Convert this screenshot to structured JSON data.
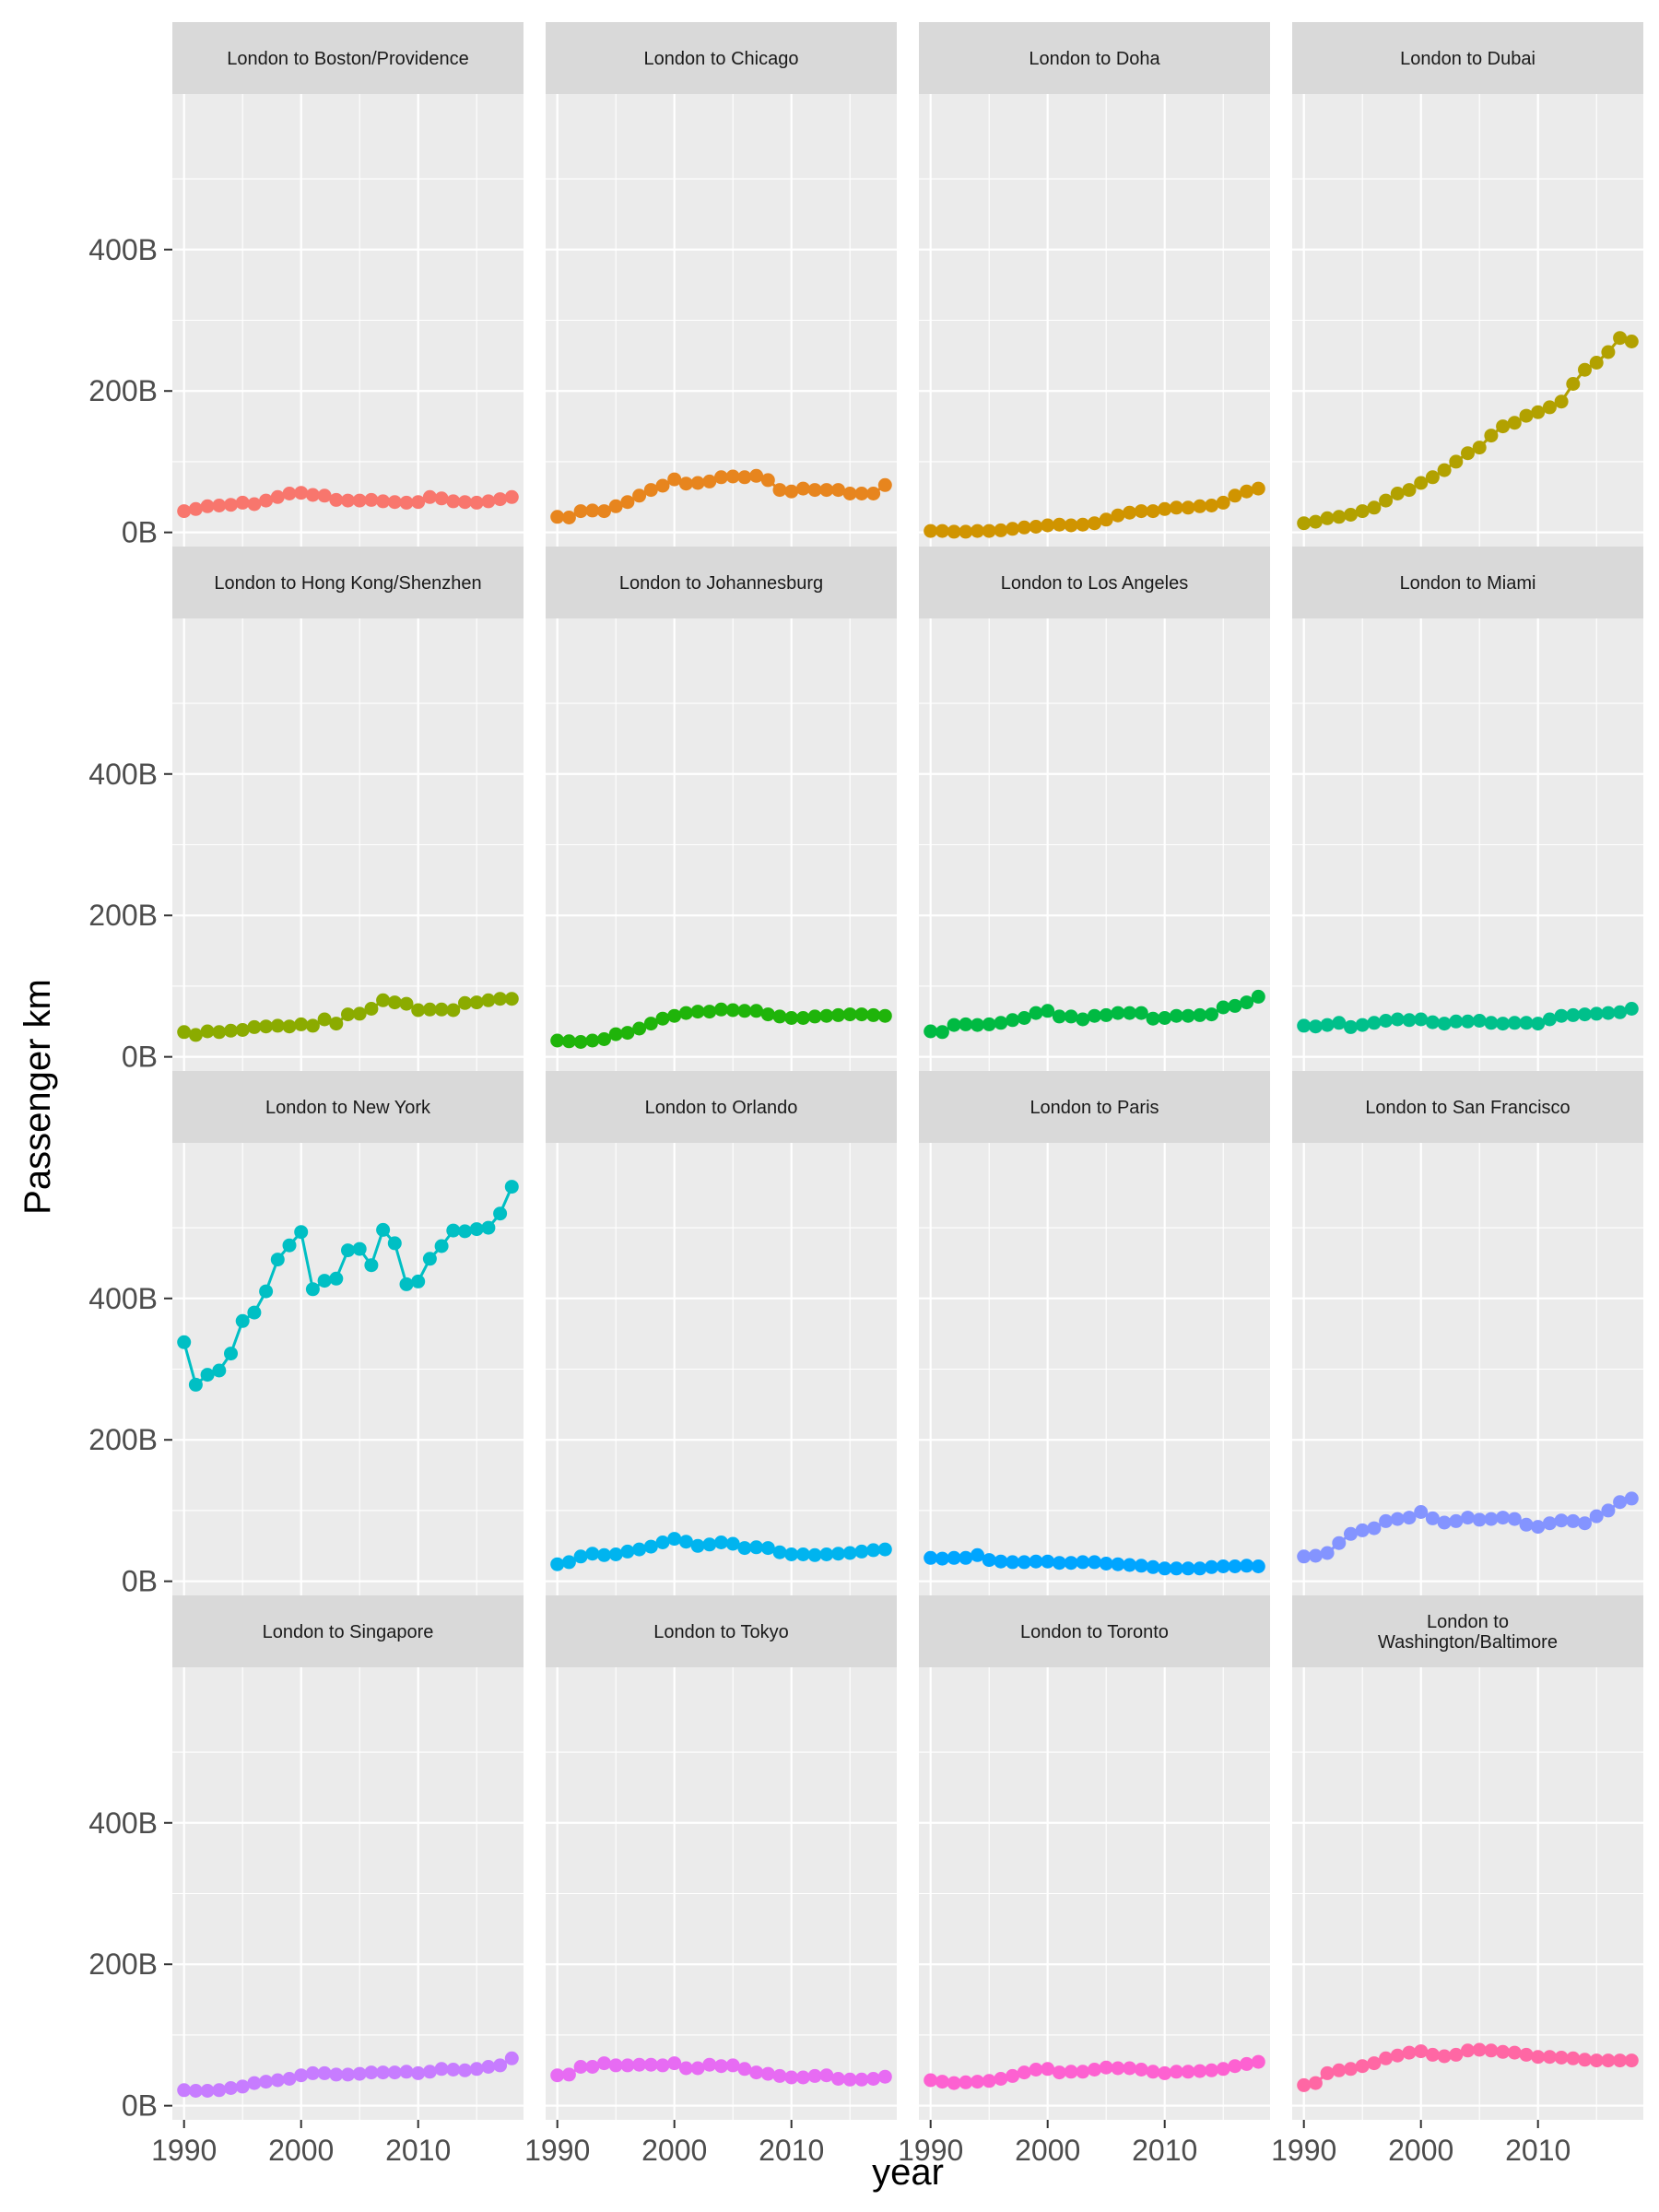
{
  "chart_data": {
    "type": "line",
    "subtype": "faceted line+point (small multiples)",
    "xlabel": "year",
    "ylabel": "Passenger km",
    "xlim": [
      1989,
      2019
    ],
    "ylim": [
      -20,
      620
    ],
    "x_ticks": [
      1990,
      2000,
      2010
    ],
    "x_tick_labels": [
      "1990",
      "2000",
      "2010"
    ],
    "y_ticks": [
      0,
      200,
      400
    ],
    "y_tick_labels": [
      "0B",
      "200B",
      "400B"
    ],
    "y_unit": "billions of passenger km",
    "years": [
      1990,
      1991,
      1992,
      1993,
      1994,
      1995,
      1996,
      1997,
      1998,
      1999,
      2000,
      2001,
      2002,
      2003,
      2004,
      2005,
      2006,
      2007,
      2008,
      2009,
      2010,
      2011,
      2012,
      2013,
      2014,
      2015,
      2016,
      2017,
      2018
    ],
    "grid": true,
    "legend": "none",
    "facet_rows": 4,
    "facet_cols": 4,
    "series": [
      {
        "name": "London to Boston/Providence",
        "color": "#F8766D",
        "values": [
          30,
          33,
          37,
          38,
          39,
          42,
          40,
          45,
          50,
          55,
          56,
          53,
          52,
          46,
          45,
          45,
          46,
          44,
          43,
          42,
          43,
          50,
          48,
          44,
          43,
          42,
          44,
          47,
          50
        ]
      },
      {
        "name": "London to Chicago",
        "color": "#E7851E",
        "values": [
          22,
          21,
          30,
          31,
          30,
          37,
          43,
          52,
          60,
          66,
          75,
          69,
          70,
          72,
          78,
          79,
          78,
          80,
          74,
          60,
          58,
          62,
          60,
          60,
          60,
          55,
          55,
          55,
          67
        ]
      },
      {
        "name": "London to Doha",
        "color": "#D09400",
        "values": [
          2,
          2,
          1,
          1,
          2,
          2,
          3,
          5,
          7,
          8,
          10,
          11,
          10,
          11,
          13,
          18,
          24,
          28,
          30,
          30,
          33,
          35,
          35,
          37,
          38,
          42,
          52,
          58,
          62
        ]
      },
      {
        "name": "London to Dubai",
        "color": "#B2A100",
        "values": [
          13,
          15,
          20,
          22,
          25,
          30,
          35,
          45,
          55,
          60,
          70,
          78,
          88,
          100,
          112,
          120,
          137,
          150,
          155,
          165,
          170,
          177,
          185,
          210,
          230,
          240,
          255,
          275,
          270
        ]
      },
      {
        "name": "London to Hong Kong/Shenzhen",
        "color": "#8BAB00",
        "values": [
          35,
          31,
          36,
          35,
          37,
          38,
          42,
          43,
          44,
          43,
          46,
          44,
          53,
          47,
          60,
          61,
          68,
          80,
          77,
          75,
          66,
          67,
          67,
          66,
          76,
          77,
          80,
          82,
          82
        ]
      },
      {
        "name": "London to Johannesburg",
        "color": "#1FB40A",
        "values": [
          23,
          22,
          21,
          23,
          25,
          32,
          34,
          40,
          47,
          54,
          58,
          62,
          64,
          64,
          67,
          66,
          65,
          65,
          60,
          57,
          55,
          55,
          57,
          58,
          59,
          60,
          60,
          59,
          58
        ]
      },
      {
        "name": "London to Los Angeles",
        "color": "#00BA42",
        "values": [
          36,
          35,
          45,
          46,
          45,
          46,
          48,
          52,
          55,
          62,
          65,
          57,
          57,
          53,
          58,
          59,
          62,
          62,
          62,
          54,
          55,
          58,
          58,
          59,
          60,
          70,
          72,
          77,
          85
        ]
      },
      {
        "name": "London to Miami",
        "color": "#00C08B",
        "values": [
          44,
          43,
          45,
          48,
          42,
          45,
          48,
          51,
          53,
          52,
          53,
          49,
          47,
          50,
          50,
          51,
          48,
          47,
          48,
          48,
          47,
          53,
          58,
          59,
          60,
          61,
          62,
          63,
          68
        ]
      },
      {
        "name": "London to New York",
        "color": "#00BFC4",
        "values": [
          338,
          278,
          292,
          298,
          322,
          368,
          380,
          410,
          455,
          475,
          494,
          413,
          425,
          428,
          468,
          470,
          447,
          497,
          478,
          420,
          424,
          456,
          474,
          496,
          495,
          498,
          500,
          520,
          558
        ]
      },
      {
        "name": "London to Orlando",
        "color": "#00B4EF",
        "values": [
          24,
          27,
          35,
          39,
          37,
          38,
          42,
          45,
          49,
          55,
          60,
          56,
          50,
          52,
          55,
          53,
          47,
          48,
          47,
          41,
          38,
          38,
          37,
          38,
          39,
          40,
          42,
          44,
          45
        ]
      },
      {
        "name": "London to Paris",
        "color": "#00A5FF",
        "values": [
          33,
          32,
          33,
          33,
          37,
          30,
          28,
          27,
          27,
          28,
          28,
          26,
          26,
          27,
          27,
          25,
          24,
          23,
          22,
          20,
          18,
          18,
          18,
          18,
          20,
          21,
          21,
          22,
          21
        ]
      },
      {
        "name": "London to San Francisco",
        "color": "#8494FF",
        "values": [
          35,
          36,
          40,
          54,
          67,
          72,
          75,
          85,
          88,
          90,
          98,
          89,
          83,
          85,
          90,
          87,
          88,
          90,
          88,
          80,
          77,
          82,
          86,
          85,
          82,
          92,
          100,
          112,
          117
        ]
      },
      {
        "name": "London to Singapore",
        "color": "#C77CFF",
        "values": [
          22,
          21,
          21,
          22,
          25,
          27,
          32,
          34,
          36,
          38,
          43,
          46,
          46,
          44,
          44,
          45,
          47,
          47,
          47,
          48,
          46,
          48,
          52,
          51,
          50,
          52,
          55,
          57,
          67
        ]
      },
      {
        "name": "London to Tokyo",
        "color": "#E76BF3",
        "values": [
          43,
          44,
          55,
          55,
          60,
          57,
          57,
          58,
          58,
          57,
          60,
          53,
          53,
          58,
          56,
          57,
          52,
          47,
          45,
          42,
          40,
          40,
          42,
          43,
          38,
          37,
          37,
          38,
          41
        ]
      },
      {
        "name": "London to Toronto",
        "color": "#FD61D1",
        "values": [
          36,
          34,
          32,
          33,
          34,
          35,
          38,
          42,
          47,
          51,
          52,
          47,
          48,
          48,
          51,
          54,
          53,
          53,
          51,
          48,
          46,
          48,
          48,
          49,
          50,
          52,
          56,
          59,
          62
        ]
      },
      {
        "name": "London to Washington/Baltimore",
        "color": "#FF67A4",
        "values": [
          29,
          32,
          46,
          50,
          52,
          56,
          60,
          67,
          71,
          75,
          77,
          72,
          70,
          72,
          78,
          79,
          78,
          76,
          75,
          72,
          69,
          69,
          68,
          67,
          65,
          64,
          64,
          64,
          64
        ]
      }
    ],
    "facet_labels": [
      [
        "London to Boston/Providence"
      ],
      [
        "London to Chicago"
      ],
      [
        "London to Doha"
      ],
      [
        "London to Dubai"
      ],
      [
        "London to Hong Kong/Shenzhen"
      ],
      [
        "London to Johannesburg"
      ],
      [
        "London to Los Angeles"
      ],
      [
        "London to Miami"
      ],
      [
        "London to New York"
      ],
      [
        "London to Orlando"
      ],
      [
        "London to Paris"
      ],
      [
        "London to San Francisco"
      ],
      [
        "London to Singapore"
      ],
      [
        "London to Tokyo"
      ],
      [
        "London to Toronto"
      ],
      [
        "London to",
        "Washington/Baltimore"
      ]
    ]
  },
  "colors": {
    "panel_background": "#ebebeb",
    "strip_background": "#d9d9d9",
    "grid": "#ffffff",
    "axis_text": "#4d4d4d",
    "strip_text": "#1a1a1a"
  }
}
